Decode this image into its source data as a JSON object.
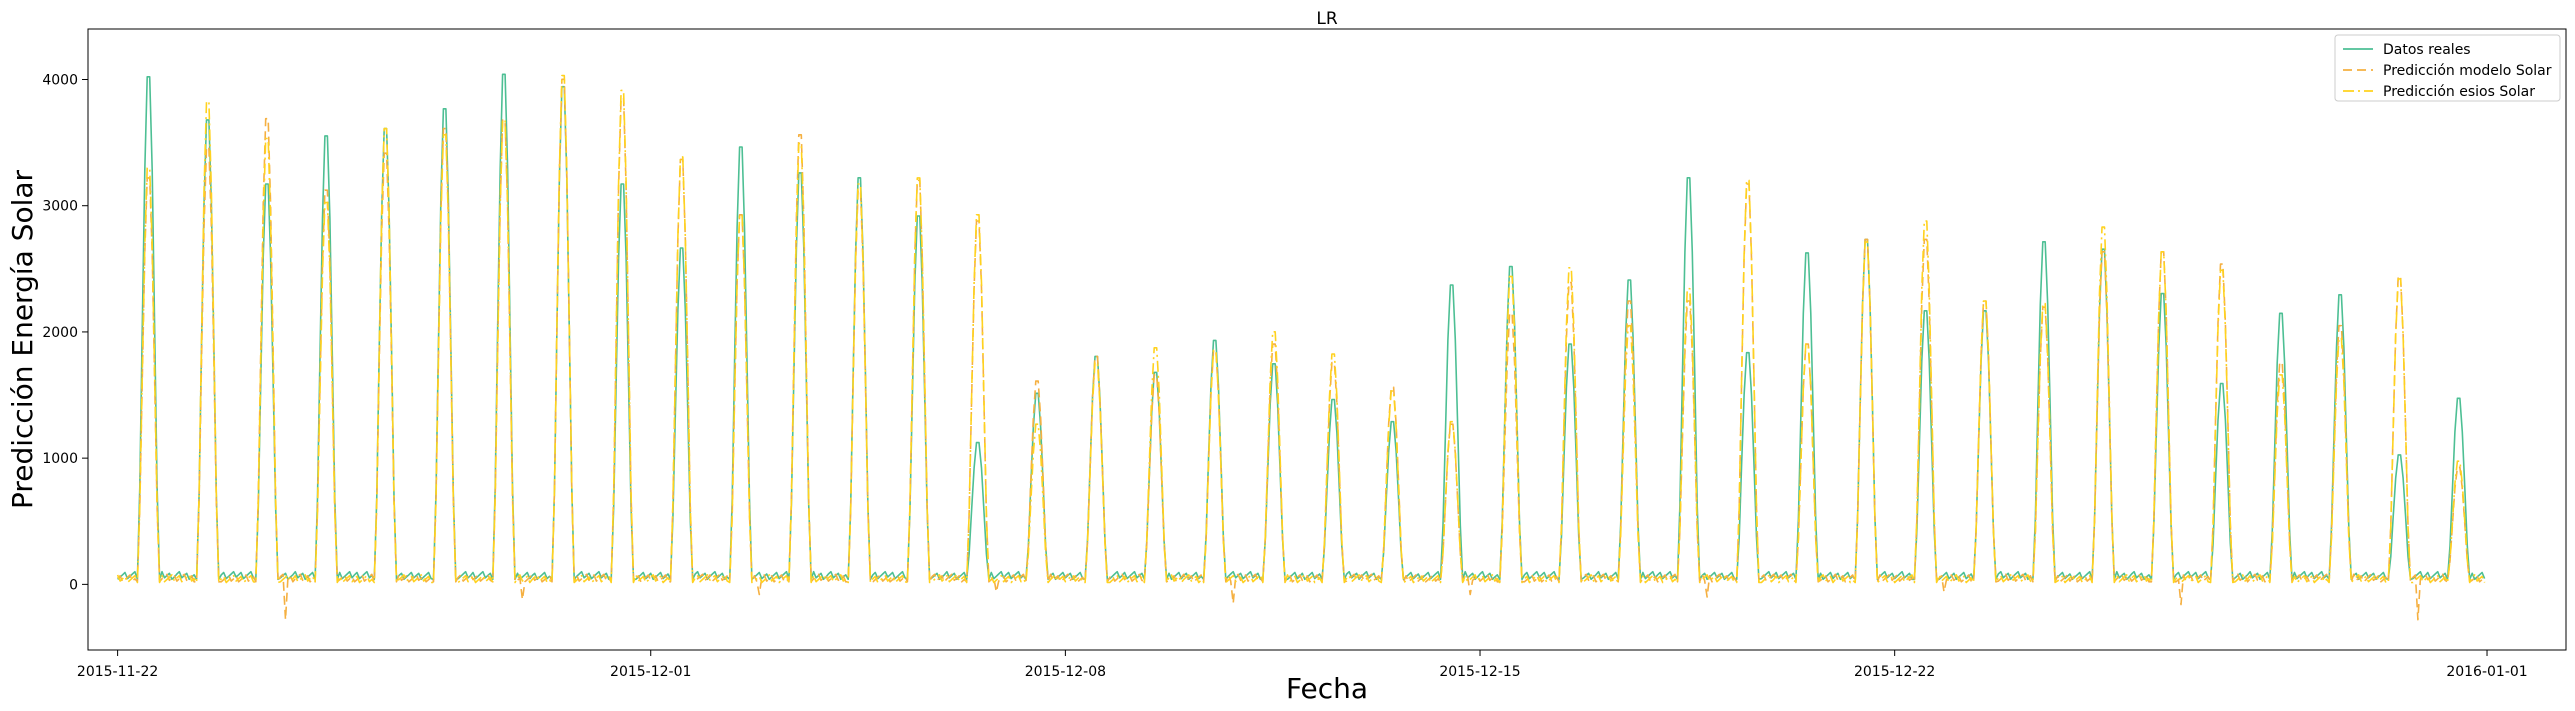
{
  "chart_data": {
    "type": "line",
    "title": "LR",
    "xlabel": "Fecha",
    "ylabel": "Predicción Energía Solar",
    "xlim": [
      "2015-11-21T12:00",
      "2016-01-02T08:00"
    ],
    "ylim": [
      -520,
      4400
    ],
    "x_ticks": [
      "2015-11-22",
      "2015-12-01",
      "2015-12-08",
      "2015-12-15",
      "2015-12-22",
      "2016-01-01"
    ],
    "y_ticks": [
      0,
      1000,
      2000,
      3000,
      4000
    ],
    "grid": false,
    "legend_position": "top-right",
    "time_resolution": "hourly, 2015-11-22 00:00 to 2015-12-31 23:00",
    "series": [
      {
        "name": "Datos reales",
        "color": "#4dbf94",
        "dash": "solid",
        "daily_peaks": [
          4120,
          3770,
          3250,
          3640,
          3700,
          3860,
          4140,
          4040,
          3250,
          2730,
          3550,
          3340,
          3300,
          2990,
          1150,
          1550,
          1850,
          1720,
          1980,
          1790,
          1500,
          1320,
          2430,
          2580,
          1950,
          2470,
          3300,
          1880,
          2690,
          2800,
          2220,
          2220,
          2780,
          2720,
          2360,
          1630,
          2200,
          2350,
          1050,
          1510
        ],
        "night_baseline": 40
      },
      {
        "name": "Predicción modelo Solar",
        "color": "#f5b041",
        "dash": "dashed",
        "daily_peaks": [
          3300,
          3550,
          3780,
          3200,
          3500,
          3700,
          3770,
          4100,
          3950,
          3450,
          3000,
          3650,
          3200,
          3280,
          2950,
          1650,
          1850,
          1700,
          1900,
          1950,
          1800,
          1600,
          1300,
          2200,
          2450,
          2300,
          2300,
          3250,
          1950,
          2800,
          2800,
          2300,
          2250,
          2700,
          2700,
          2600,
          1800,
          2100,
          2500,
          950
        ],
        "night_dips": [
          -280,
          -120,
          -80,
          -60,
          -150,
          -80,
          -100,
          -60,
          -160
        ],
        "night_baseline": 20
      },
      {
        "name": "Predicción esios Solar",
        "color": "#ffd21f",
        "dash": "dashdot",
        "daily_peaks": [
          3380,
          3920,
          3620,
          3100,
          3700,
          3650,
          3770,
          4130,
          4010,
          3470,
          3000,
          3580,
          3250,
          3300,
          3000,
          1300,
          1800,
          1920,
          1900,
          2050,
          1870,
          1570,
          1320,
          2500,
          2570,
          2100,
          2400,
          3280,
          1950,
          2780,
          2950,
          2300,
          2280,
          2900,
          2700,
          2550,
          1700,
          2000,
          2480,
          1000
        ],
        "night_baseline": 15
      }
    ]
  }
}
